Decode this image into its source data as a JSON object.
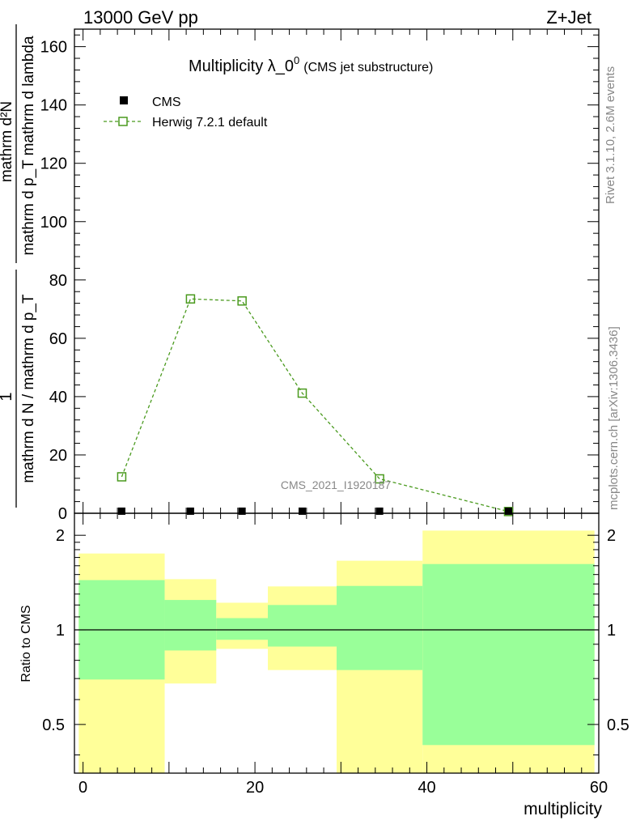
{
  "header": {
    "left_label": "13000 GeV pp",
    "right_label": "Z+Jet"
  },
  "side_notes": {
    "rivet": "Rivet 3.1.10,  2.6M events",
    "mcplots": "mcplots.cern.ch [arXiv:1306.3436]"
  },
  "watermark": "CMS_2021_I1920187",
  "chart_data": [
    {
      "type": "line",
      "title": "Multiplicity λ_0",
      "title_superscript": "0",
      "subtitle": "(CMS jet substructure)",
      "ylabel_numerator": "1",
      "ylabel_denominator": "mathrm d N / mathrm d p_T",
      "ylabel_numerator2": "mathrm d²N",
      "ylabel_denominator2": "mathrm d p_T mathrm d lambda",
      "xlim": [
        -1,
        60
      ],
      "ylim": [
        0,
        166
      ],
      "yticks": [
        0,
        20,
        40,
        60,
        80,
        100,
        120,
        140,
        160
      ],
      "legend_position": "top-left",
      "series": [
        {
          "name": "CMS",
          "marker": "filled-square",
          "color": "#000000",
          "x": [
            4.5,
            12.5,
            18.5,
            25.5,
            34.5,
            49.5
          ],
          "y": [
            0.3,
            0.3,
            0.3,
            0.3,
            0.3,
            0.3
          ]
        },
        {
          "name": "Herwig 7.2.1 default",
          "marker": "open-square",
          "line": "dashed",
          "color": "#4a9a1e",
          "x": [
            4.5,
            12.5,
            18.5,
            25.5,
            34.5,
            49.5
          ],
          "y": [
            12.5,
            73.5,
            72.8,
            41.2,
            11.8,
            0.6
          ]
        }
      ]
    },
    {
      "type": "area",
      "ylabel": "Ratio to CMS",
      "xlabel": "multiplicity",
      "xlim": [
        -1,
        60
      ],
      "ylim": [
        0.35,
        2.35
      ],
      "yscale": "log",
      "yticks": [
        0.5,
        1,
        2
      ],
      "xticks": [
        0,
        20,
        40,
        60
      ],
      "reference_line": 1,
      "bins": [
        {
          "x0": -0.5,
          "x1": 9.5,
          "yellow_lo": 0.35,
          "yellow_hi": 1.75,
          "green_lo": 0.695,
          "green_hi": 1.44
        },
        {
          "x0": 9.5,
          "x1": 15.5,
          "yellow_lo": 0.675,
          "yellow_hi": 1.45,
          "green_lo": 0.86,
          "green_hi": 1.245
        },
        {
          "x0": 15.5,
          "x1": 21.5,
          "yellow_lo": 0.87,
          "yellow_hi": 1.22,
          "green_lo": 0.93,
          "green_hi": 1.09
        },
        {
          "x0": 21.5,
          "x1": 29.5,
          "yellow_lo": 0.745,
          "yellow_hi": 1.375,
          "green_lo": 0.885,
          "green_hi": 1.2
        },
        {
          "x0": 29.5,
          "x1": 39.5,
          "yellow_lo": 0.35,
          "yellow_hi": 1.66,
          "green_lo": 0.745,
          "green_hi": 1.38
        },
        {
          "x0": 39.5,
          "x1": 59.5,
          "yellow_lo": 0.35,
          "yellow_hi": 2.07,
          "green_lo": 0.43,
          "green_hi": 1.62
        }
      ],
      "colors": {
        "yellow": "#ffff99",
        "green": "#99ff99"
      }
    }
  ]
}
